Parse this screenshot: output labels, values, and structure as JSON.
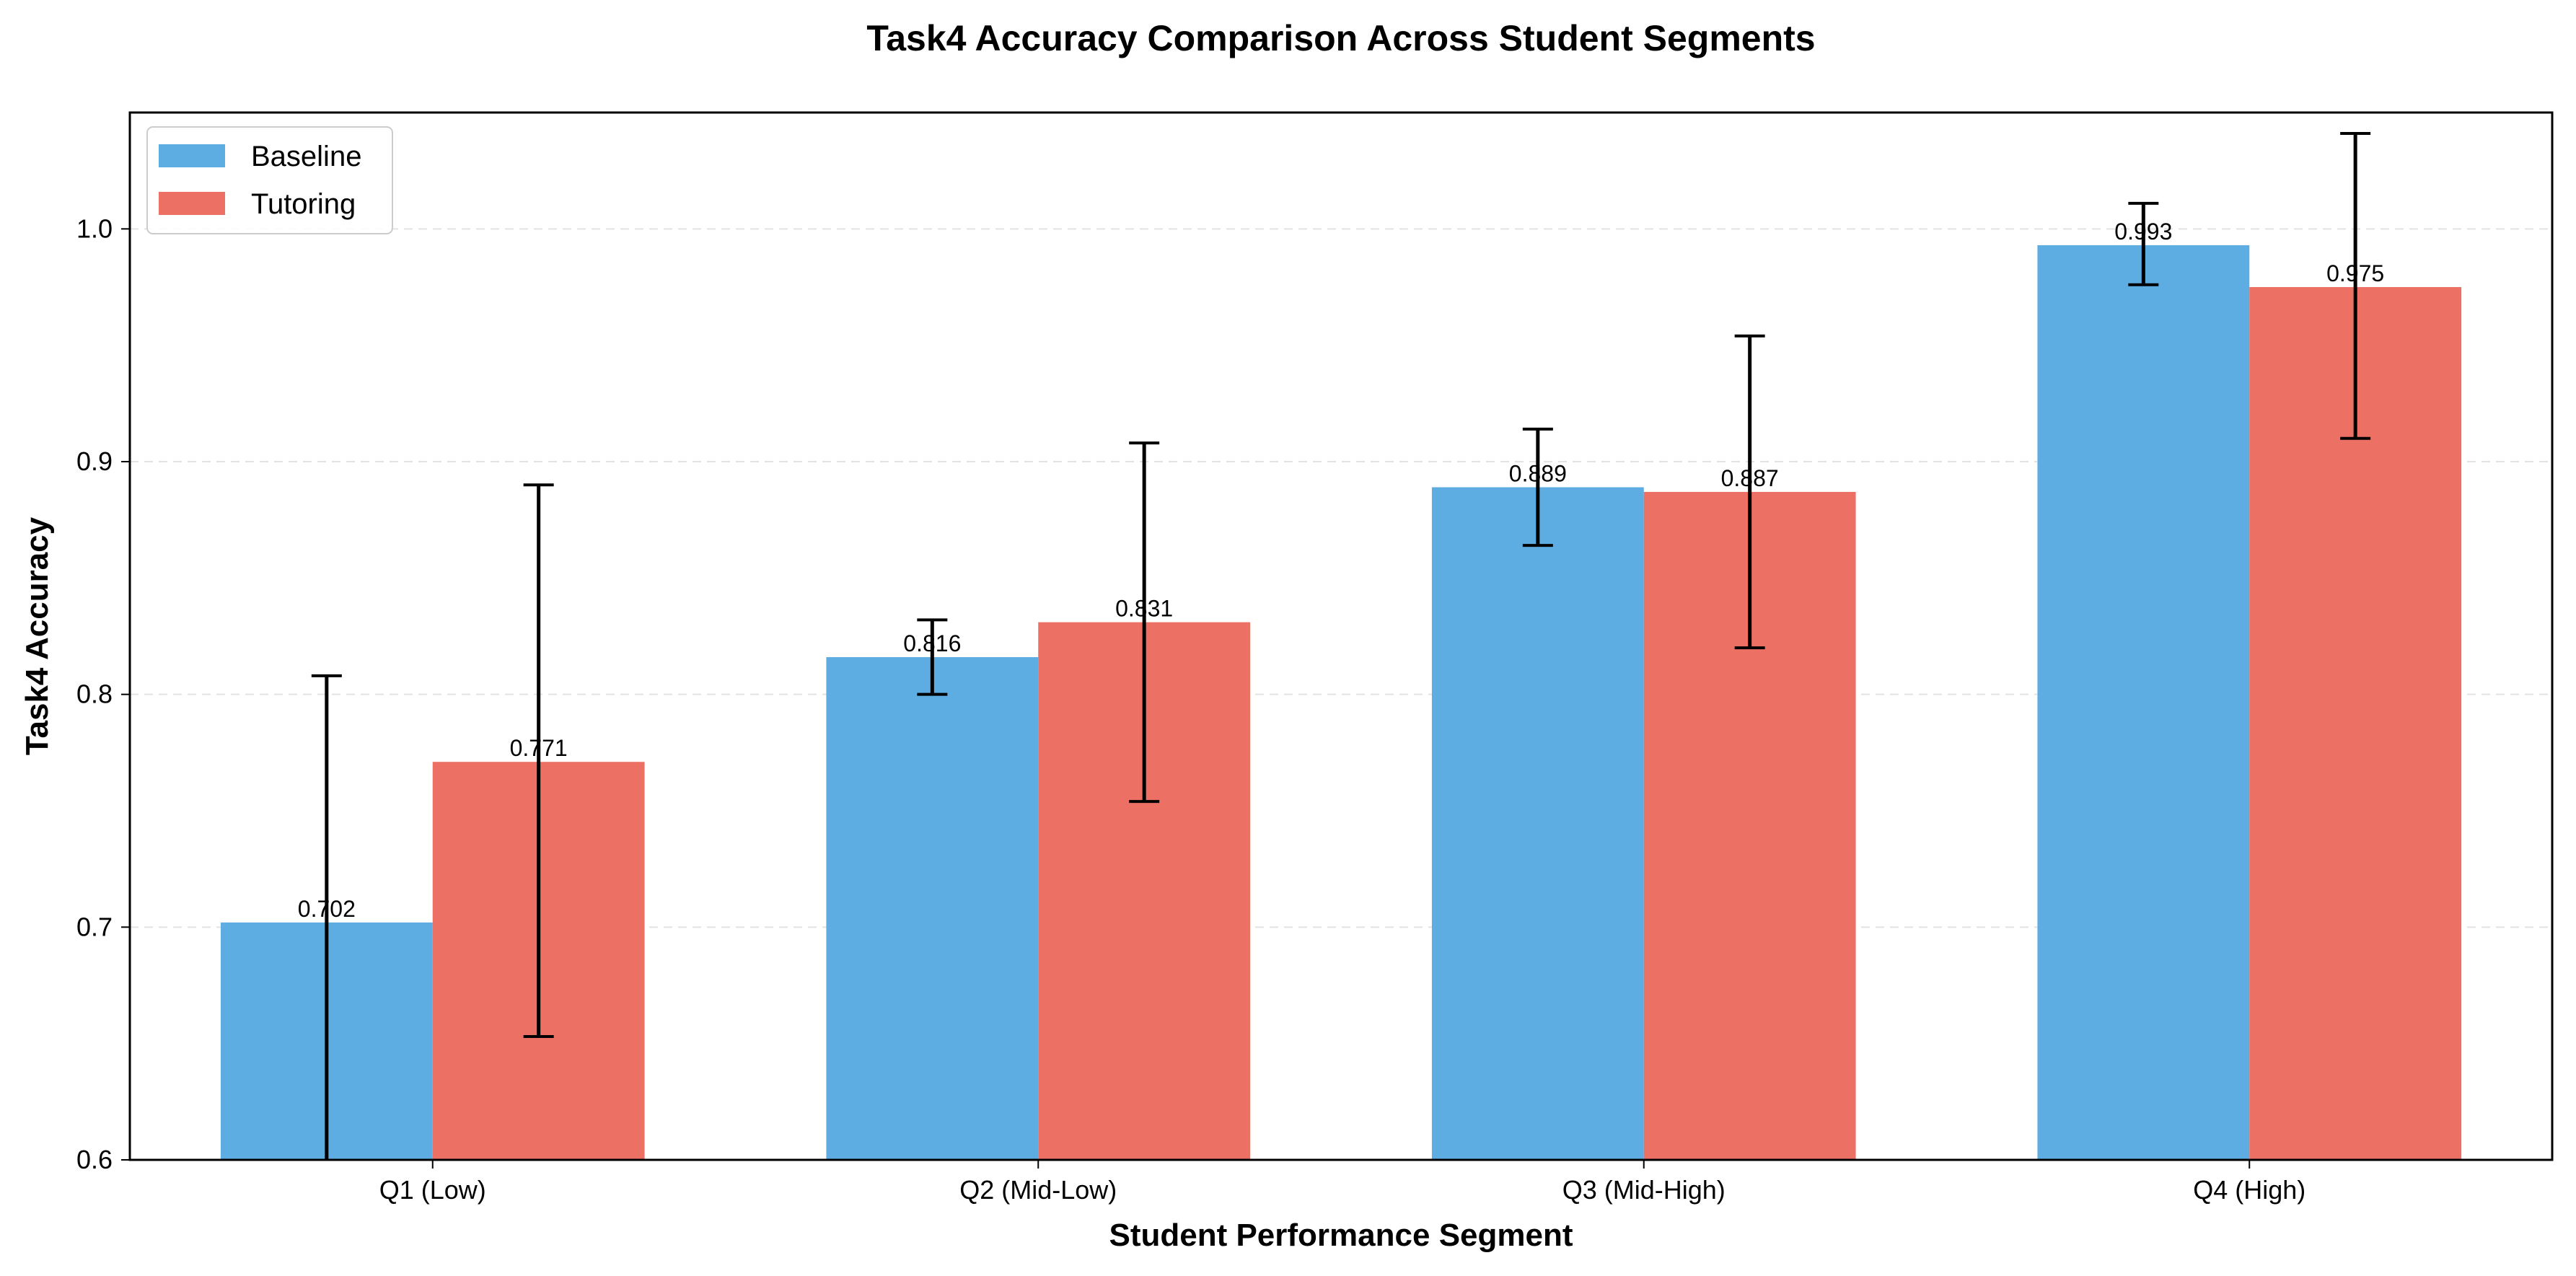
{
  "chart_data": {
    "type": "bar",
    "title": "Task4 Accuracy Comparison Across Student Segments",
    "xlabel": "Student Performance Segment",
    "ylabel": "Task4 Accuracy",
    "ylim": [
      0.6,
      1.05
    ],
    "yticks": [
      "0.6",
      "0.7",
      "0.8",
      "0.9",
      "1.0"
    ],
    "grid": "horizontal dashed",
    "legend_position": "top-left",
    "categories": [
      "Q1 (Low)",
      "Q2 (Mid-Low)",
      "Q3 (Mid-High)",
      "Q4 (High)"
    ],
    "series": [
      {
        "name": "Baseline",
        "color": "#5DADE2",
        "values": [
          0.702,
          0.816,
          0.889,
          0.993
        ],
        "labels": [
          "0.702",
          "0.816",
          "0.889",
          "0.993"
        ],
        "error_low": [
          0.596,
          0.8,
          0.864,
          0.976
        ],
        "error_high": [
          0.808,
          0.832,
          0.914,
          1.011
        ]
      },
      {
        "name": "Tutoring",
        "color": "#EC7063",
        "values": [
          0.771,
          0.831,
          0.887,
          0.975
        ],
        "labels": [
          "0.771",
          "0.831",
          "0.887",
          "0.975"
        ],
        "error_low": [
          0.653,
          0.754,
          0.82,
          0.91
        ],
        "error_high": [
          0.89,
          0.908,
          0.954,
          1.041
        ]
      }
    ]
  }
}
